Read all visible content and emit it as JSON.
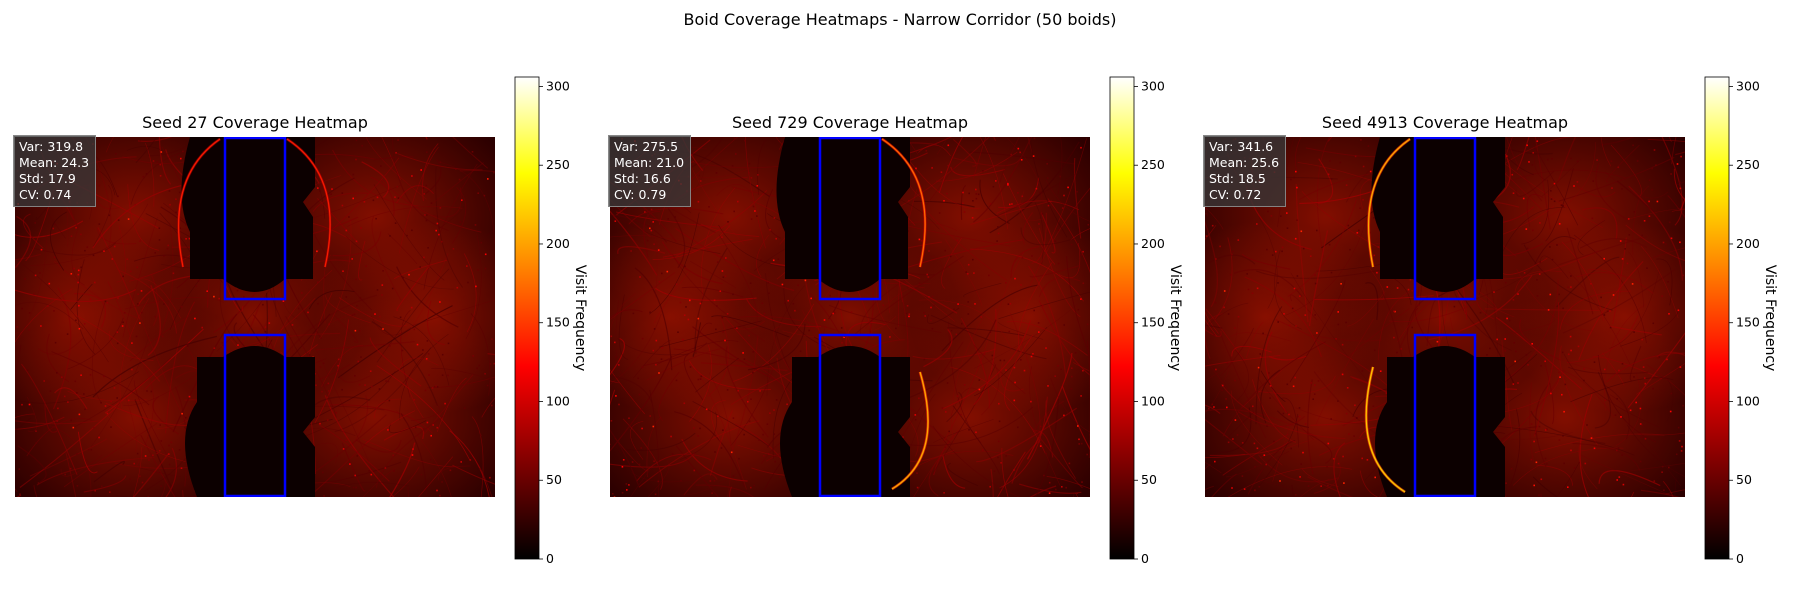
{
  "figure": {
    "title": "Boid Coverage Heatmaps - Narrow Corridor  (50 boids)"
  },
  "colormap": [
    "#000000",
    "#800000",
    "#ff0000",
    "#ff8000",
    "#ffff00",
    "#ffffff"
  ],
  "corridor_color": "#0000ff",
  "panels": [
    {
      "title": "Seed 27 Coverage Heatmap",
      "stats": [
        "Var: 319.8",
        "Mean: 24.3",
        "Std: 17.9",
        "CV: 0.74"
      ],
      "colorbar_label": "Visit Frequency",
      "hotspot": "none"
    },
    {
      "title": "Seed 729 Coverage Heatmap",
      "stats": [
        "Var: 275.5",
        "Mean: 21.0",
        "Std: 16.6",
        "CV: 0.79"
      ],
      "colorbar_label": "Visit Frequency",
      "hotspot": "right"
    },
    {
      "title": "Seed 4913 Coverage Heatmap",
      "stats": [
        "Var: 341.6",
        "Mean: 25.6",
        "Std: 18.5",
        "CV: 0.72"
      ],
      "colorbar_label": "Visit Frequency",
      "hotspot": "left"
    }
  ],
  "chart_data": [
    {
      "type": "heatmap",
      "title": "Seed 27 Coverage Heatmap",
      "colorbar": {
        "label": "Visit Frequency",
        "ticks": [
          0,
          50,
          100,
          150,
          200,
          250,
          300
        ],
        "range": [
          0,
          306
        ]
      },
      "annotations": [
        "Var: 319.8",
        "Mean: 24.3",
        "Std: 17.9",
        "CV: 0.74"
      ],
      "axes_visible": false
    },
    {
      "type": "heatmap",
      "title": "Seed 729 Coverage Heatmap",
      "colorbar": {
        "label": "Visit Frequency",
        "ticks": [
          0,
          50,
          100,
          150,
          200,
          250,
          300
        ],
        "range": [
          0,
          306
        ]
      },
      "annotations": [
        "Var: 275.5",
        "Mean: 21.0",
        "Std: 16.6",
        "CV: 0.79"
      ],
      "axes_visible": false
    },
    {
      "type": "heatmap",
      "title": "Seed 4913 Coverage Heatmap",
      "colorbar": {
        "label": "Visit Frequency",
        "ticks": [
          0,
          50,
          100,
          150,
          200,
          250,
          300
        ],
        "range": [
          0,
          306
        ]
      },
      "annotations": [
        "Var: 341.6",
        "Mean: 25.6",
        "Std: 18.5",
        "CV: 0.72"
      ],
      "axes_visible": false
    }
  ]
}
